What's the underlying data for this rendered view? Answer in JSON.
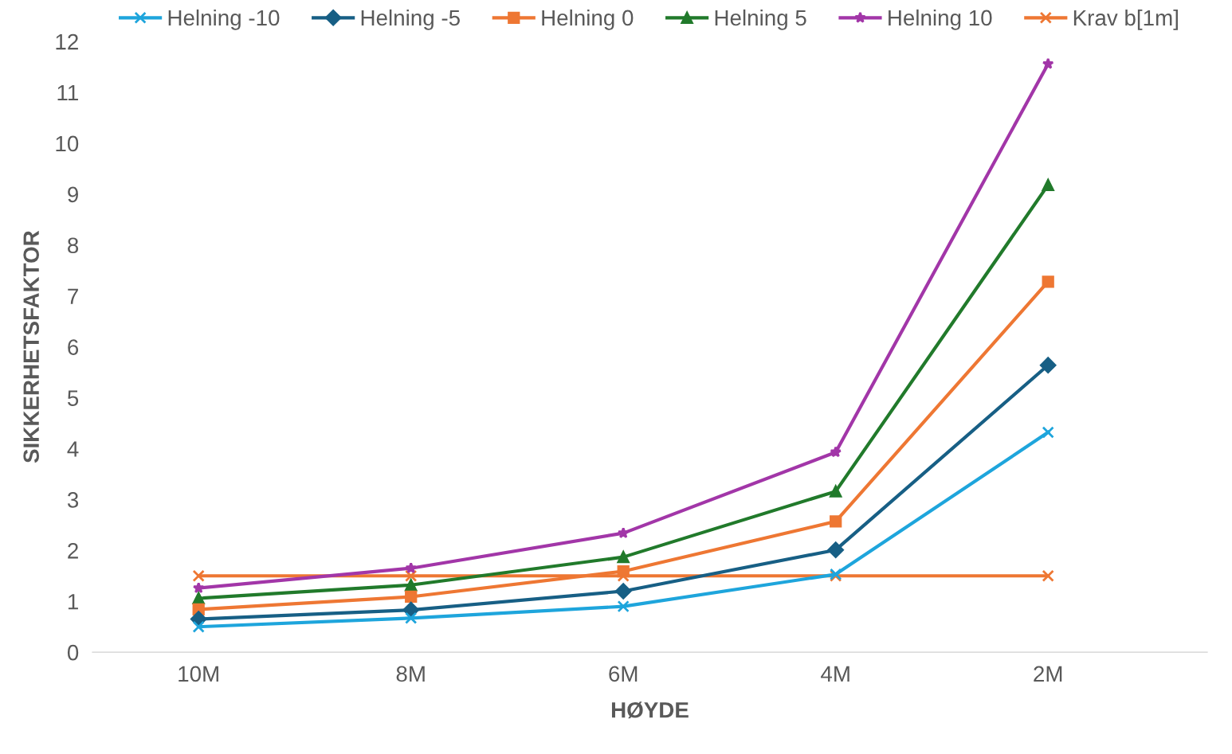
{
  "chart_data": {
    "type": "line",
    "xlabel": "HØYDE",
    "ylabel": "SIKKERHETSFAKTOR",
    "categories": [
      "10M",
      "8M",
      "6M",
      "4M",
      "2M"
    ],
    "series": [
      {
        "name": "Helning -10",
        "color": "#1ea5dc",
        "marker": "cross",
        "values": [
          0.5,
          0.67,
          0.9,
          1.53,
          4.32
        ]
      },
      {
        "name": "Helning -5",
        "color": "#175f85",
        "marker": "diamond",
        "values": [
          0.65,
          0.83,
          1.2,
          2.01,
          5.64
        ]
      },
      {
        "name": "Helning 0",
        "color": "#ee7733",
        "marker": "square",
        "values": [
          0.84,
          1.09,
          1.59,
          2.57,
          7.28
        ]
      },
      {
        "name": "Helning 5",
        "color": "#217a2b",
        "marker": "triangle",
        "values": [
          1.06,
          1.32,
          1.87,
          3.16,
          9.18
        ]
      },
      {
        "name": "Helning 10",
        "color": "#a236a8",
        "marker": "star",
        "values": [
          1.26,
          1.65,
          2.34,
          3.93,
          11.56
        ]
      },
      {
        "name": "Krav b[1m]",
        "color": "#ee7733",
        "marker": "cross",
        "values": [
          1.5,
          1.5,
          1.5,
          1.5,
          1.5
        ]
      }
    ],
    "ylim": [
      0,
      12
    ],
    "yticks": [
      0,
      1,
      2,
      3,
      4,
      5,
      6,
      7,
      8,
      9,
      10,
      11,
      12
    ],
    "grid": false,
    "legend": "top",
    "line_style": "solid"
  }
}
